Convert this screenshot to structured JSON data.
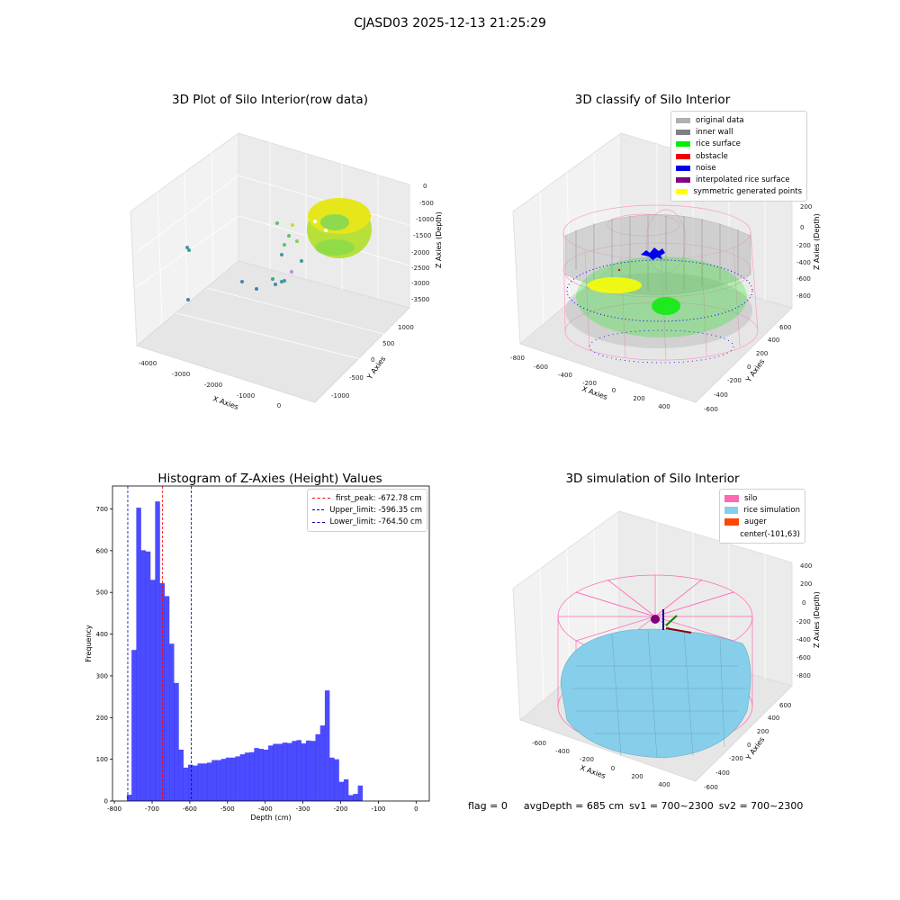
{
  "suptitle": "CJASD03 2025-12-13 21:25:29",
  "panels": {
    "raw": {
      "title": "3D Plot of Silo Interior(row data)",
      "xlabel": "X Axies",
      "ylabel": "Y Axies",
      "zlabel": "Z Axies (Depth)",
      "xticks": [
        "-4000",
        "-3000",
        "-2000",
        "-1000",
        "0"
      ],
      "yticks": [
        "-1000",
        "-500",
        "0",
        "500",
        "1000"
      ],
      "zticks": [
        "0",
        "-500",
        "-1000",
        "-1500",
        "-2000",
        "-2500",
        "-3000",
        "-3500"
      ]
    },
    "classify": {
      "title": "3D classify of Silo Interior",
      "xlabel": "X Axies",
      "ylabel": "Y Axies",
      "zlabel": "Z Axies (Depth)",
      "xticks": [
        "-800",
        "-600",
        "-400",
        "-200",
        "0",
        "200",
        "400"
      ],
      "yticks": [
        "-600",
        "-400",
        "-200",
        "0",
        "200",
        "400",
        "600"
      ],
      "zticks": [
        "200",
        "0",
        "-200",
        "-400",
        "-600",
        "-800"
      ],
      "legend": [
        {
          "label": "original data",
          "color": "#b0b0b0"
        },
        {
          "label": "inner wall",
          "color": "#808080"
        },
        {
          "label": "rice surface",
          "color": "#00ee00"
        },
        {
          "label": "obstacle",
          "color": "#ee0000"
        },
        {
          "label": "noise",
          "color": "#0000ee"
        },
        {
          "label": "interpolated rice surface",
          "color": "#800080"
        },
        {
          "label": "symmetric generated points",
          "color": "#ffff00"
        }
      ]
    },
    "simulation": {
      "title": "3D simulation of Silo Interior",
      "xlabel": "X Axies",
      "ylabel": "Y Axies",
      "zlabel": "Z Axies (Depth)",
      "xticks": [
        "-600",
        "-400",
        "-200",
        "0",
        "200",
        "400"
      ],
      "yticks": [
        "-600",
        "-400",
        "-200",
        "0",
        "200",
        "400",
        "600"
      ],
      "zticks": [
        "400",
        "200",
        "0",
        "-200",
        "-400",
        "-600",
        "-800"
      ],
      "legend": [
        {
          "label": "silo",
          "color": "#ff69b4"
        },
        {
          "label": "rice simulation",
          "color": "#87ceeb"
        },
        {
          "label": "auger",
          "color": "#ff4500"
        },
        {
          "label": "center(-101,63)",
          "color": "transparent"
        }
      ]
    }
  },
  "status": {
    "flag": "flag = 0",
    "avg_depth": "avgDepth = 685 cm",
    "sv1": "sv1 = 700~2300",
    "sv2": "sv2 = 700~2300"
  },
  "chart_data": [
    {
      "type": "scatter",
      "title": "3D Plot of Silo Interior(row data)",
      "xlabel": "X Axies",
      "ylabel": "Y Axies",
      "zlabel": "Z Axies (Depth)",
      "xlim": [
        -4300,
        600
      ],
      "ylim": [
        -1300,
        1200
      ],
      "zlim": [
        -3800,
        200
      ]
    },
    {
      "type": "scatter",
      "title": "3D classify of Silo Interior",
      "xlabel": "X Axies",
      "ylabel": "Y Axies",
      "zlabel": "Z Axies (Depth)",
      "series": [
        {
          "name": "original data"
        },
        {
          "name": "inner wall"
        },
        {
          "name": "rice surface"
        },
        {
          "name": "obstacle"
        },
        {
          "name": "noise"
        },
        {
          "name": "interpolated rice surface"
        },
        {
          "name": "symmetric generated points"
        }
      ],
      "legend": "top-right"
    },
    {
      "type": "bar",
      "title": "Histogram of Z-Axies (Height) Values",
      "xlabel": "Depth (cm)",
      "ylabel": "Frequency",
      "bin_width": 12.5,
      "x_start": -767,
      "values": [
        15,
        362,
        703,
        601,
        598,
        530,
        718,
        522,
        491,
        377,
        283,
        123,
        80,
        87,
        85,
        90,
        90,
        92,
        98,
        98,
        101,
        104,
        104,
        107,
        112,
        116,
        117,
        127,
        125,
        123,
        133,
        137,
        137,
        140,
        139,
        144,
        146,
        138,
        145,
        144,
        160,
        181,
        265,
        104,
        100,
        46,
        52,
        14,
        17,
        37
      ],
      "xlim": [
        -805,
        35
      ],
      "ylim": [
        0,
        755
      ],
      "xticks": [
        -800,
        -700,
        -600,
        -500,
        -400,
        -300,
        -200,
        -100,
        0
      ],
      "yticks": [
        0,
        100,
        200,
        300,
        400,
        500,
        600,
        700
      ],
      "color": "#0000ff",
      "lines": [
        {
          "name": "first_peak: -672.78 cm",
          "x": -672.78,
          "color": "#ff0000"
        },
        {
          "name": "Upper_limit: -596.35 cm",
          "x": -596.35,
          "color": "#0000aa"
        },
        {
          "name": "Lower_limit: -764.50 cm",
          "x": -764.5,
          "color": "#0000aa"
        }
      ],
      "legend": "top-right"
    },
    {
      "type": "scatter",
      "title": "3D simulation of Silo Interior",
      "xlabel": "X Axies",
      "ylabel": "Y Axies",
      "zlabel": "Z Axies (Depth)",
      "series": [
        {
          "name": "silo"
        },
        {
          "name": "rice simulation"
        },
        {
          "name": "auger"
        }
      ],
      "legend": "top-right"
    }
  ]
}
